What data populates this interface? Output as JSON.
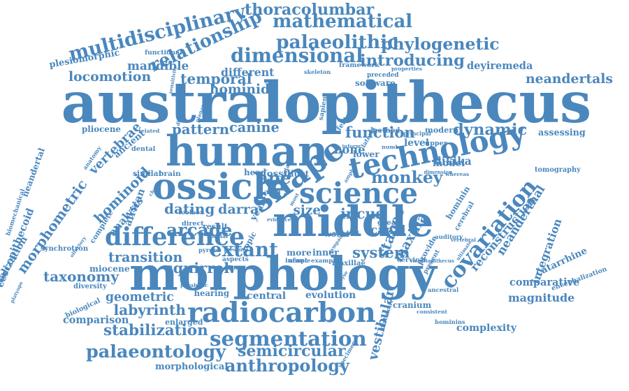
{
  "colors": {
    "word": "#4a87bd",
    "background": "#ffffff"
  },
  "words": [
    "australopithecus",
    "morphology",
    "human",
    "shape",
    "covariation",
    "technology",
    "middle",
    "science",
    "ossicle",
    "radiocarbon",
    "segmentation",
    "difference",
    "hominoid",
    "morphometric",
    "multidisciplinary",
    "relationship",
    "mathematical",
    "thoracolumbar",
    "palaeolithic",
    "phylogenetic",
    "dimensional",
    "introducing",
    "reconstruction",
    "neanderthal",
    "palaeontology",
    "anthropology",
    "semicircular",
    "stabilization",
    "neandertals",
    "locomotion",
    "temporal",
    "hominid",
    "mandible",
    "cercopithecoid",
    "vertebrae",
    "ancient",
    "pattern",
    "canine",
    "function",
    "monkey",
    "dynamic",
    "arcade",
    "dating",
    "darra",
    "ape",
    "extant",
    "analysis",
    "transition",
    "squirrel",
    "taxonomy",
    "miocene",
    "biological",
    "geometric",
    "labyrinth",
    "comparison",
    "central",
    "evolution",
    "system",
    "stapes",
    "maxilla",
    "incus",
    "integration",
    "comparative",
    "magnitude",
    "complexity",
    "vestibular",
    "cranium",
    "morphological",
    "pliocene",
    "dikika",
    "hominin",
    "cerebral",
    "modern",
    "deyiremeda",
    "neandertal",
    "visualization",
    "biomechanical",
    "plesiomorphic",
    "functional",
    "skeleton",
    "framework",
    "software",
    "preceded",
    "properties",
    "sensitivity",
    "distinguish",
    "planar",
    "different",
    "method",
    "principal",
    "assessing",
    "tomography",
    "encephalization",
    "catarrhine",
    "ancestral",
    "auditory",
    "present",
    "provide",
    "canal",
    "great",
    "inner",
    "more",
    "infant",
    "world",
    "enlarged",
    "hearing",
    "parabolic",
    "platyops",
    "synchrotron",
    "diversity",
    "toolbox",
    "olfactory",
    "complete",
    "african",
    "anatomy",
    "related",
    "dental",
    "brain",
    "similar",
    "head",
    "fossil",
    "duct",
    "asia",
    "size",
    "result",
    "direct",
    "spatial",
    "topic",
    "year",
    "bone",
    "lower",
    "lateral",
    "upper",
    "dimension",
    "model",
    "whereas",
    "distinctive",
    "specimen",
    "consistent",
    "hominins",
    "victoriapithecus",
    "cervical",
    "vertebral",
    "ultimate",
    "maxillae",
    "example",
    "analyse",
    "sapiens",
    "feature",
    "inform",
    "reduced",
    "tympanic",
    "cranial",
    "most",
    "amphs",
    "aspects",
    "primate",
    "pyrgos",
    "presence",
    "change",
    "number",
    "level",
    "evidence",
    "sample",
    "structure",
    "fenestra",
    "studies"
  ]
}
